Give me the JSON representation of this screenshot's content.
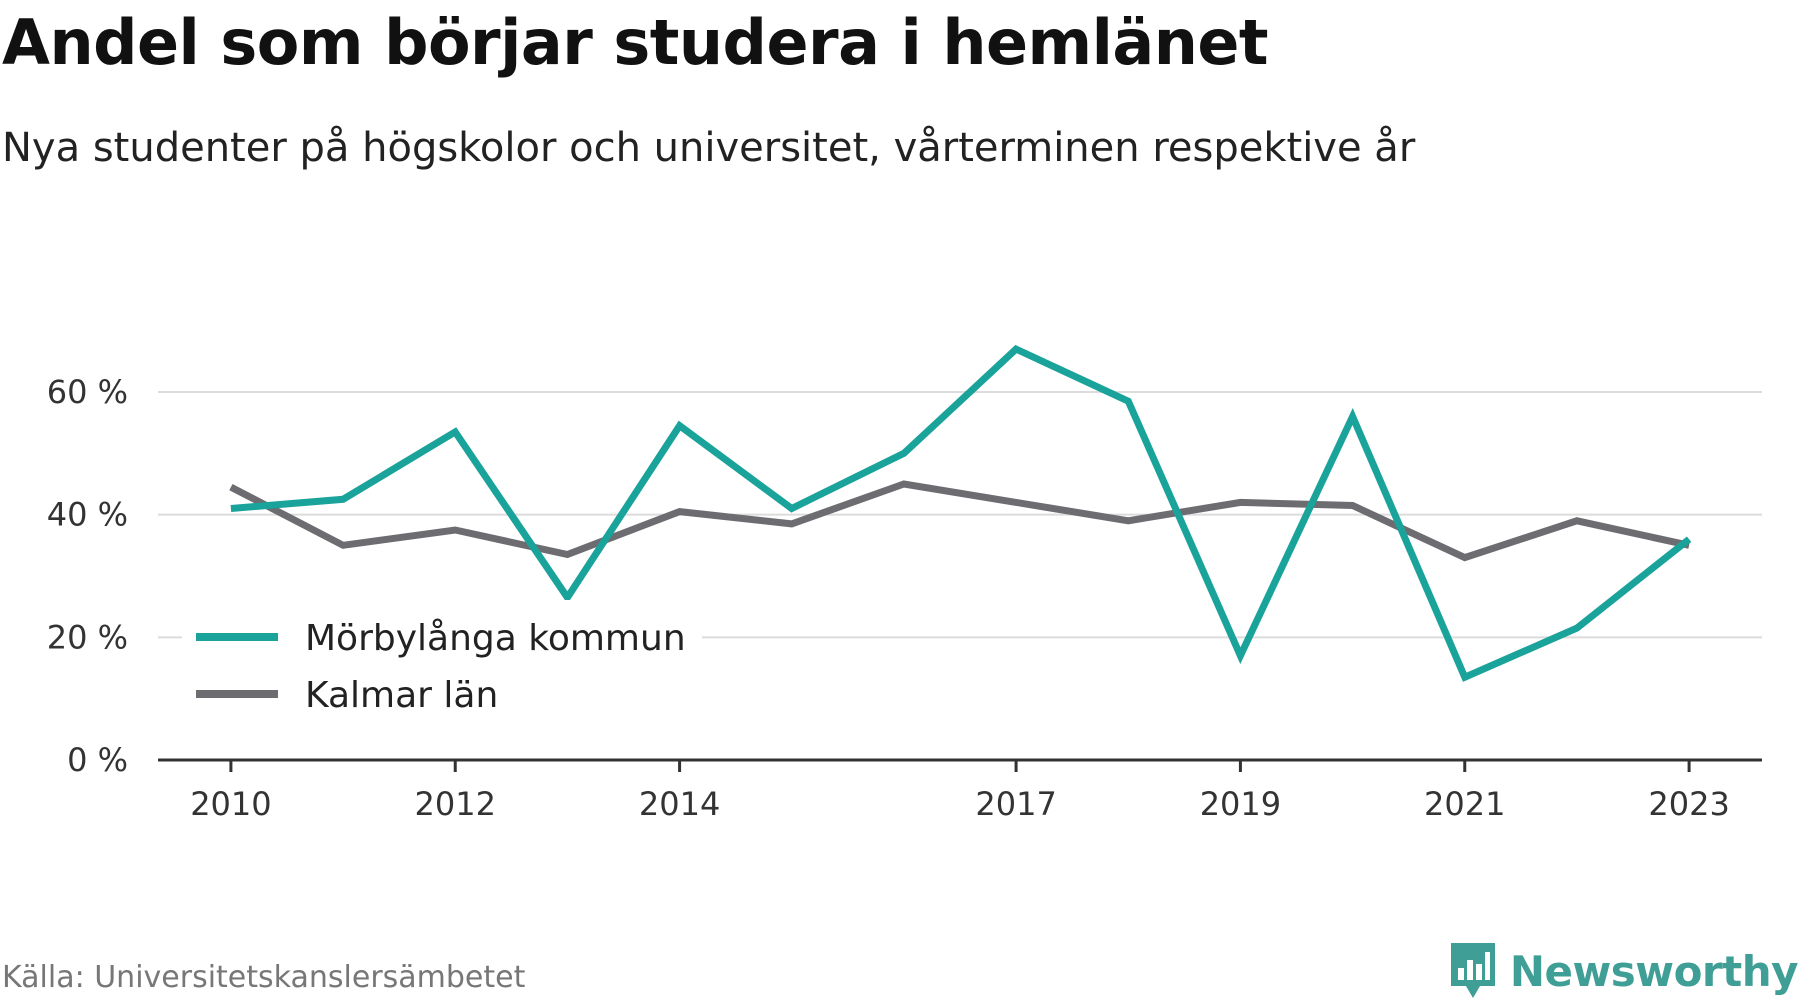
{
  "header": {
    "title": "Andel som börjar studera i hemlänet",
    "subtitle": "Nya studenter på högskolor och universitet, vårterminen respektive år"
  },
  "footer": {
    "source": "Källa: Universitetskanslersämbetet",
    "brand": "Newsworthy",
    "brand_icon": "bar-chart-bubble-icon"
  },
  "colors": {
    "primary": "#1aa39a",
    "secondary": "#6d6c71",
    "grid": "#dcdcdc",
    "axis": "#333333",
    "brand": "#3f9e95"
  },
  "chart_data": {
    "type": "line",
    "title": "Andel som börjar studera i hemlänet",
    "subtitle": "Nya studenter på högskolor och universitet, vårterminen respektive år",
    "xlabel": "",
    "ylabel": "",
    "x": [
      2010,
      2011,
      2012,
      2013,
      2014,
      2015,
      2016,
      2017,
      2018,
      2019,
      2020,
      2021,
      2022,
      2023
    ],
    "xticks": [
      2010,
      2012,
      2014,
      2017,
      2019,
      2021,
      2023
    ],
    "xlim": [
      2009.35,
      2023.65
    ],
    "ylim": [
      0,
      75
    ],
    "yticks": [
      0,
      20,
      40,
      60
    ],
    "ytick_labels": [
      "0 %",
      "20 %",
      "40 %",
      "60 %"
    ],
    "grid": true,
    "legend_position": "bottom-left",
    "series": [
      {
        "name": "Mörbylånga kommun",
        "color": "#1aa39a",
        "values": [
          41,
          42.5,
          53.5,
          26.5,
          54.5,
          41,
          50,
          67,
          58.5,
          17,
          56,
          13.5,
          21.5,
          36
        ]
      },
      {
        "name": "Kalmar län",
        "color": "#6d6c71",
        "values": [
          44.5,
          35,
          37.5,
          33.5,
          40.5,
          38.5,
          45,
          42,
          39,
          42,
          41.5,
          33,
          39,
          35
        ]
      }
    ]
  }
}
